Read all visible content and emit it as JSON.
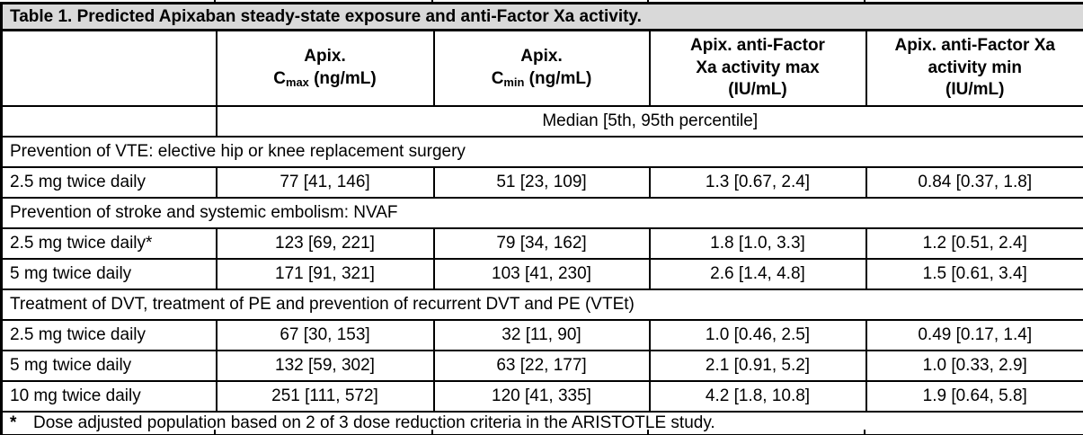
{
  "colors": {
    "title_bg": "#d9d9d9",
    "border": "#000000",
    "text": "#000000",
    "background": "#ffffff"
  },
  "title": "Table 1. Predicted Apixaban steady-state exposure and anti-Factor Xa activity.",
  "header": {
    "col1": "",
    "cmax": {
      "line1": "Apix.",
      "symbol": "C",
      "subscript": "max",
      "unit": " (ng/mL)"
    },
    "cmin": {
      "line1": "Apix.",
      "symbol": "C",
      "subscript": "min",
      "unit": " (ng/mL)"
    },
    "axa_max": {
      "lines": [
        "Apix. anti-Factor",
        "Xa activity max",
        "(IU/mL)"
      ]
    },
    "axa_min": {
      "lines": [
        "Apix. anti-Factor Xa",
        "activity min",
        "(IU/mL)"
      ]
    }
  },
  "median_label": "Median [5th, 95th percentile]",
  "sections": [
    {
      "heading": "Prevention of VTE: elective hip or knee replacement surgery",
      "rows": [
        {
          "label": "2.5 mg twice daily",
          "cmax": "77 [41, 146]",
          "cmin": "51 [23, 109]",
          "axa_max": "1.3 [0.67, 2.4]",
          "axa_min": "0.84 [0.37, 1.8]"
        }
      ]
    },
    {
      "heading": "Prevention of stroke and systemic embolism: NVAF",
      "rows": [
        {
          "label": "2.5 mg twice daily*",
          "cmax": "123 [69, 221]",
          "cmin": "79 [34, 162]",
          "axa_max": "1.8 [1.0, 3.3]",
          "axa_min": "1.2 [0.51, 2.4]"
        },
        {
          "label": "5 mg twice daily",
          "cmax": "171 [91, 321]",
          "cmin": "103 [41, 230]",
          "axa_max": "2.6 [1.4, 4.8]",
          "axa_min": "1.5 [0.61, 3.4]"
        }
      ]
    },
    {
      "heading": "Treatment of DVT, treatment of PE and prevention of recurrent DVT and PE (VTEt)",
      "rows": [
        {
          "label": "2.5 mg twice daily",
          "cmax": "67 [30, 153]",
          "cmin": "32 [11, 90]",
          "axa_max": "1.0 [0.46, 2.5]",
          "axa_min": "0.49 [0.17, 1.4]"
        },
        {
          "label": "5 mg twice daily",
          "cmax": "132 [59, 302]",
          "cmin": "63 [22, 177]",
          "axa_max": "2.1 [0.91, 5.2]",
          "axa_min": "1.0 [0.33, 2.9]"
        },
        {
          "label": "10 mg twice daily",
          "cmax": "251 [111, 572]",
          "cmin": "120 [41, 335]",
          "axa_max": "4.2 [1.8, 10.8]",
          "axa_min": "1.9 [0.64, 5.8]"
        }
      ]
    }
  ],
  "footnote": {
    "marker": "*",
    "text": "Dose adjusted population based on 2 of 3 dose reduction criteria in the ARISTOTLE study."
  }
}
